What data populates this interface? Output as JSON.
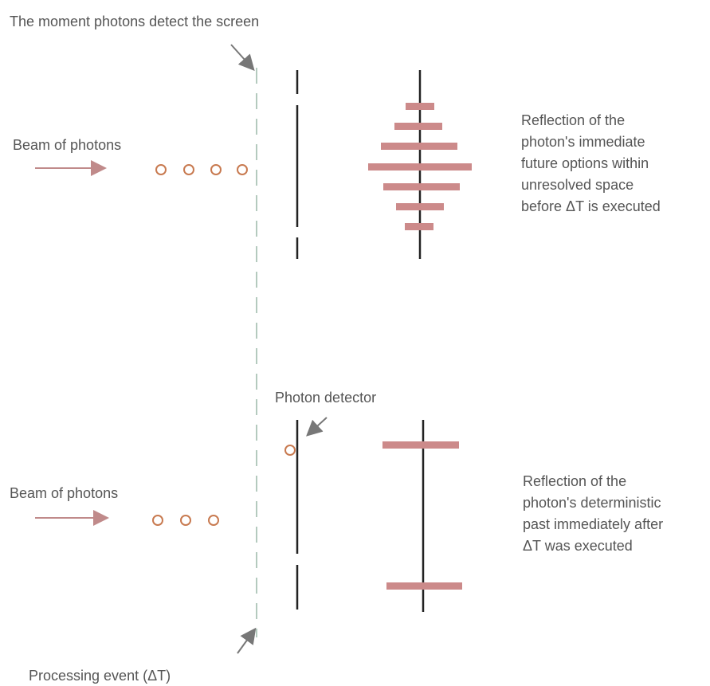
{
  "top": {
    "screen_label": "The moment photons detect the screen",
    "beam_label": "Beam of photons",
    "reflection_lines": [
      "Reflection of the",
      "photon's immediate",
      "future options within",
      "unresolved space",
      "before ΔT is executed"
    ]
  },
  "bottom": {
    "detector_label": "Photon detector",
    "beam_label": "Beam of photons",
    "reflection_lines": [
      "Reflection of the",
      "photon's deterministic",
      "past immediately after",
      "ΔT was executed"
    ]
  },
  "processing_label": "Processing event (ΔT)"
}
